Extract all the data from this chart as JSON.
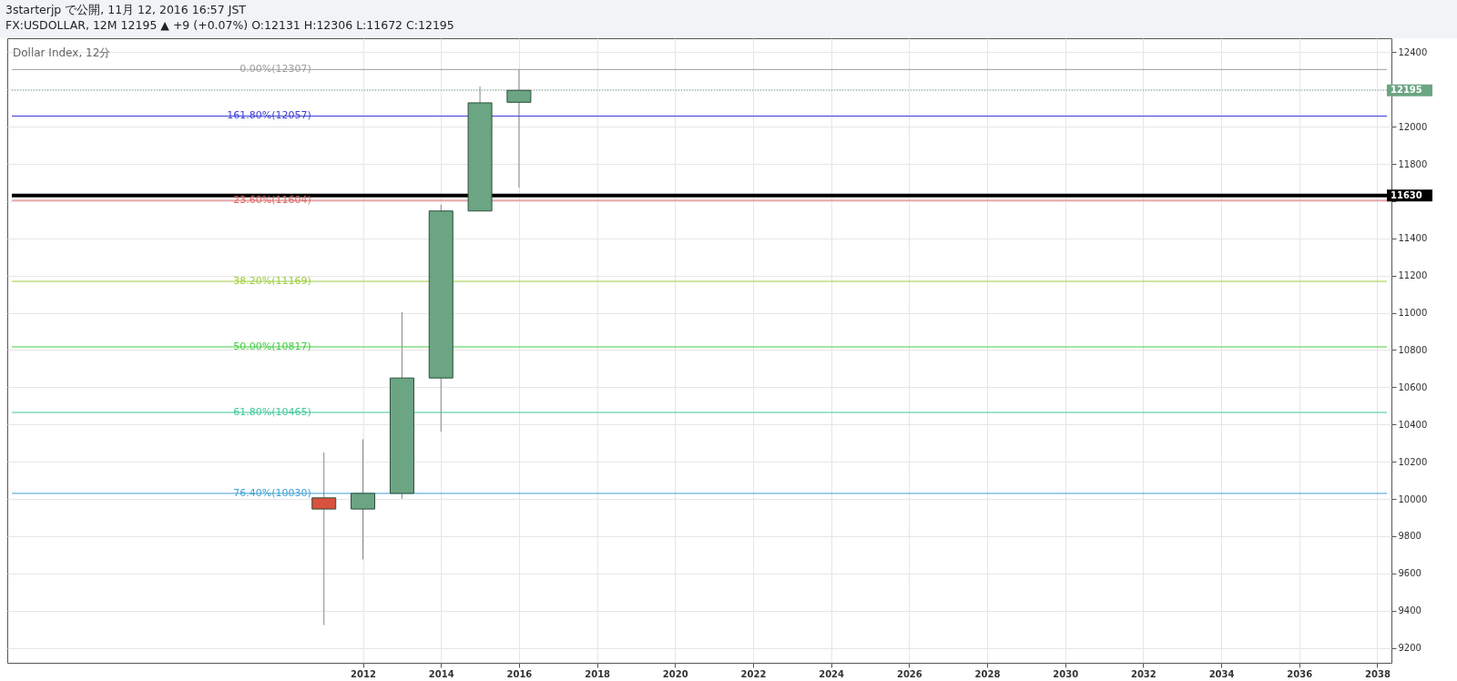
{
  "chart_data": {
    "type": "candlestick",
    "title": "Dollar Index, 12分",
    "annotations": [
      "3starterjp で公開, 11月 12, 2016 16:57 JST",
      "FX:USDOLLAR, 12M 12195 ▲ +9 (+0.07%) O:12131 H:12306 L:11672 C:12195"
    ],
    "x": [
      "2011-01-01",
      "2012-01-01",
      "2013-01-01",
      "2014-01-01",
      "2015-01-01",
      "2016-01-01"
    ],
    "ohlc": [
      [
        10006,
        10250,
        9322,
        9946
      ],
      [
        9946,
        10321,
        9675,
        10030
      ],
      [
        10030,
        11004,
        10001,
        10650
      ],
      [
        10650,
        11580,
        10362,
        11547
      ],
      [
        11547,
        12216,
        11547,
        12128
      ],
      [
        12131,
        12306,
        11672,
        12195
      ]
    ],
    "colors": [
      "#d9513f",
      "#6ba583",
      "#6ba583",
      "#6ba583",
      "#6ba583",
      "#6ba583"
    ],
    "xlim": [
      "2003-01",
      "2038-04"
    ],
    "xticks": [
      "2012",
      "2014",
      "2016",
      "2018",
      "2020",
      "2022",
      "2024",
      "2026",
      "2028",
      "2030",
      "2032",
      "2034",
      "2036",
      "2038"
    ],
    "ylim": [
      9120,
      12475
    ],
    "yticks": [
      9200,
      9400,
      9600,
      9800,
      10000,
      10200,
      10400,
      10600,
      10800,
      11000,
      11200,
      11400,
      {
        "value": 11600,
        "label": null
      },
      11800,
      12000,
      {
        "value": 12200,
        "label": null
      },
      12400
    ],
    "grid": true,
    "ref_lines": [
      {
        "axis": "y",
        "value": 12307,
        "label": "0.00%(12307)",
        "color": "#9e9e9e"
      },
      {
        "axis": "y",
        "value": 12195,
        "label": "12195",
        "color": "#6ba583",
        "line_style": "dotted"
      },
      {
        "axis": "y",
        "value": 12057,
        "label": "161.80%(12057)",
        "color": "#3b3bd6"
      },
      {
        "axis": "y",
        "value": 11630,
        "label": "11630",
        "color": "#000000"
      },
      {
        "axis": "y",
        "value": 11604,
        "label": "23.60%(11604)",
        "color": "#e06666"
      },
      {
        "axis": "y",
        "value": 11169,
        "label": "38.20%(11169)",
        "color": "#9ccc3c"
      },
      {
        "axis": "y",
        "value": 10817,
        "label": "50.00%(10817)",
        "color": "#44cc44"
      },
      {
        "axis": "y",
        "value": 10465,
        "label": "61.80%(10465)",
        "color": "#3fc89a"
      },
      {
        "axis": "y",
        "value": 10030,
        "label": "76.40%(10030)",
        "color": "#3ea0d8"
      }
    ]
  }
}
